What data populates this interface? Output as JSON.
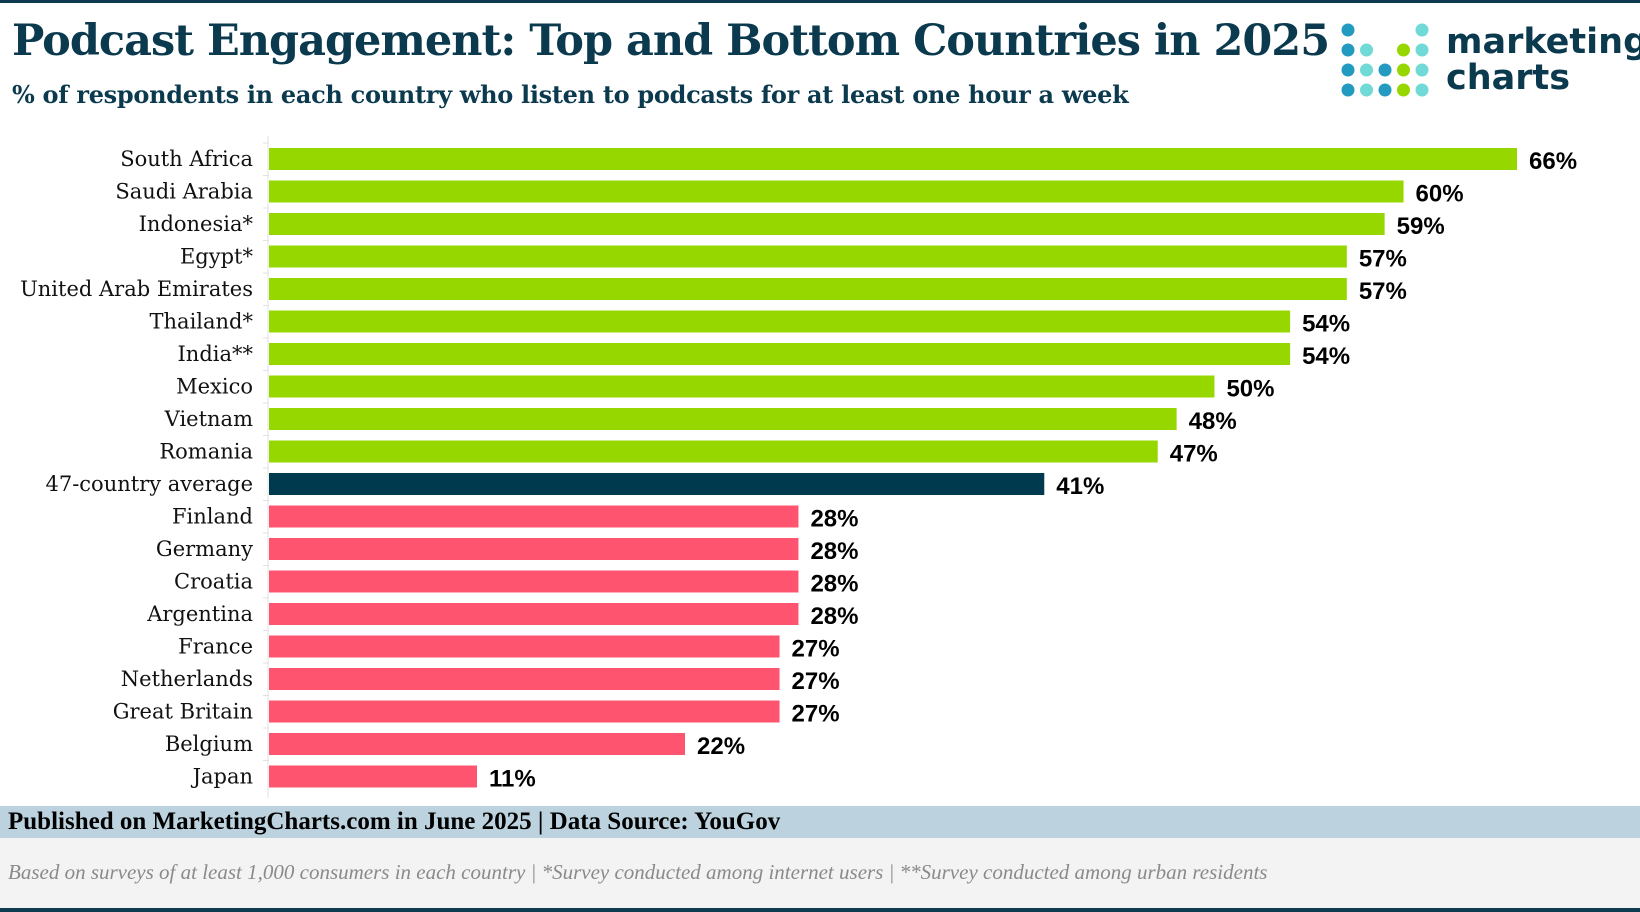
{
  "header": {
    "title": "Podcast Engagement: Top and Bottom Countries in 2025",
    "subtitle": "% of respondents in each country who listen to podcasts for at least one hour a week"
  },
  "logo": {
    "line1": "marketing",
    "line2": "charts"
  },
  "colors": {
    "top": "#97d700",
    "average": "#003a4f",
    "bottom": "#ff5470",
    "title": "#0b3a4f",
    "footer_band": "#bcd3df"
  },
  "chart_data": {
    "type": "bar",
    "orientation": "horizontal",
    "title": "Podcast Engagement: Top and Bottom Countries in 2025",
    "subtitle": "% of respondents in each country who listen to podcasts for at least one hour a week",
    "xlim": [
      0,
      70
    ],
    "grid": false,
    "categories": [
      "South Africa",
      "Saudi Arabia",
      "Indonesia*",
      "Egypt*",
      "United Arab Emirates",
      "Thailand*",
      "India**",
      "Mexico",
      "Vietnam",
      "Romania",
      "47-country average",
      "Finland",
      "Germany",
      "Croatia",
      "Argentina",
      "France",
      "Netherlands",
      "Great Britain",
      "Belgium",
      "Japan"
    ],
    "values": [
      66,
      60,
      59,
      57,
      57,
      54,
      54,
      50,
      48,
      47,
      41,
      28,
      28,
      28,
      28,
      27,
      27,
      27,
      22,
      11
    ],
    "groups": [
      "top",
      "top",
      "top",
      "top",
      "top",
      "top",
      "top",
      "top",
      "top",
      "top",
      "average",
      "bottom",
      "bottom",
      "bottom",
      "bottom",
      "bottom",
      "bottom",
      "bottom",
      "bottom",
      "bottom"
    ],
    "value_suffix": "%"
  },
  "footer": {
    "published": "Published on MarketingCharts.com in June 2025 | Data Source: YouGov",
    "notes": "Based on surveys of at least 1,000 consumers in each country  | *Survey conducted among internet users | **Survey conducted among urban residents"
  }
}
